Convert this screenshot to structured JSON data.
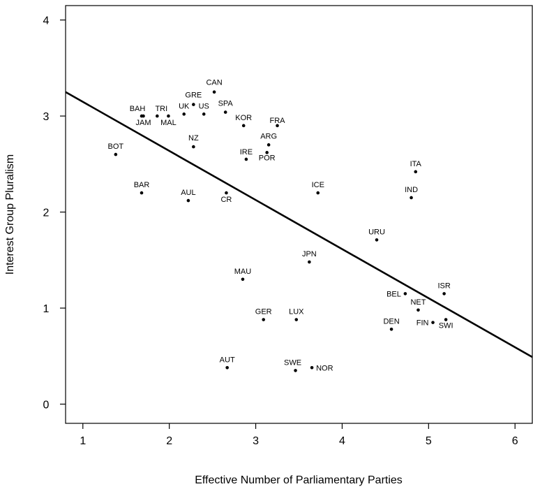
{
  "chart_data": {
    "type": "scatter",
    "title": "",
    "xlabel": "Effective Number of Parliamentary Parties",
    "ylabel": "Interest Group Pluralism",
    "xlim": [
      0.8,
      6.2
    ],
    "ylim": [
      -0.2,
      4.15
    ],
    "xticks": [
      1,
      2,
      3,
      4,
      5,
      6
    ],
    "yticks": [
      0,
      1,
      2,
      3,
      4
    ],
    "grid": false,
    "points": [
      {
        "label": "CAN",
        "x": 2.52,
        "y": 3.25
      },
      {
        "label": "GRE",
        "x": 2.28,
        "y": 3.12
      },
      {
        "label": "UK",
        "x": 2.17,
        "y": 3.02
      },
      {
        "label": "US",
        "x": 2.4,
        "y": 3.02
      },
      {
        "label": "SPA",
        "x": 2.65,
        "y": 3.04
      },
      {
        "label": "BAH",
        "x": 1.68,
        "y": 3.0
      },
      {
        "label": "TRI",
        "x": 1.86,
        "y": 3.0
      },
      {
        "label": "JAM",
        "x": 1.7,
        "y": 3.0
      },
      {
        "label": "MAL",
        "x": 1.99,
        "y": 3.0
      },
      {
        "label": "KOR",
        "x": 2.86,
        "y": 2.9
      },
      {
        "label": "FRA",
        "x": 3.25,
        "y": 2.9
      },
      {
        "label": "ARG",
        "x": 3.15,
        "y": 2.7
      },
      {
        "label": "POR",
        "x": 3.13,
        "y": 2.62
      },
      {
        "label": "IRE",
        "x": 2.89,
        "y": 2.55
      },
      {
        "label": "NZ",
        "x": 2.28,
        "y": 2.68
      },
      {
        "label": "BOT",
        "x": 1.38,
        "y": 2.6
      },
      {
        "label": "BAR",
        "x": 1.68,
        "y": 2.2
      },
      {
        "label": "AUL",
        "x": 2.22,
        "y": 2.12
      },
      {
        "label": "CR",
        "x": 2.66,
        "y": 2.2
      },
      {
        "label": "ICE",
        "x": 3.72,
        "y": 2.2
      },
      {
        "label": "ITA",
        "x": 4.85,
        "y": 2.42
      },
      {
        "label": "IND",
        "x": 4.8,
        "y": 2.15
      },
      {
        "label": "URU",
        "x": 4.4,
        "y": 1.71
      },
      {
        "label": "JPN",
        "x": 3.62,
        "y": 1.48
      },
      {
        "label": "MAU",
        "x": 2.85,
        "y": 1.3
      },
      {
        "label": "BEL",
        "x": 4.73,
        "y": 1.15
      },
      {
        "label": "ISR",
        "x": 5.18,
        "y": 1.15
      },
      {
        "label": "NET",
        "x": 4.88,
        "y": 0.98
      },
      {
        "label": "FIN",
        "x": 5.05,
        "y": 0.85
      },
      {
        "label": "SWI",
        "x": 5.2,
        "y": 0.88
      },
      {
        "label": "DEN",
        "x": 4.57,
        "y": 0.78
      },
      {
        "label": "GER",
        "x": 3.09,
        "y": 0.88
      },
      {
        "label": "LUX",
        "x": 3.47,
        "y": 0.88
      },
      {
        "label": "AUT",
        "x": 2.67,
        "y": 0.38
      },
      {
        "label": "SWE",
        "x": 3.46,
        "y": 0.35
      },
      {
        "label": "NOR",
        "x": 3.65,
        "y": 0.38
      }
    ],
    "fit_line": {
      "x": [
        0.8,
        6.2
      ],
      "y": [
        3.25,
        0.49
      ]
    }
  }
}
